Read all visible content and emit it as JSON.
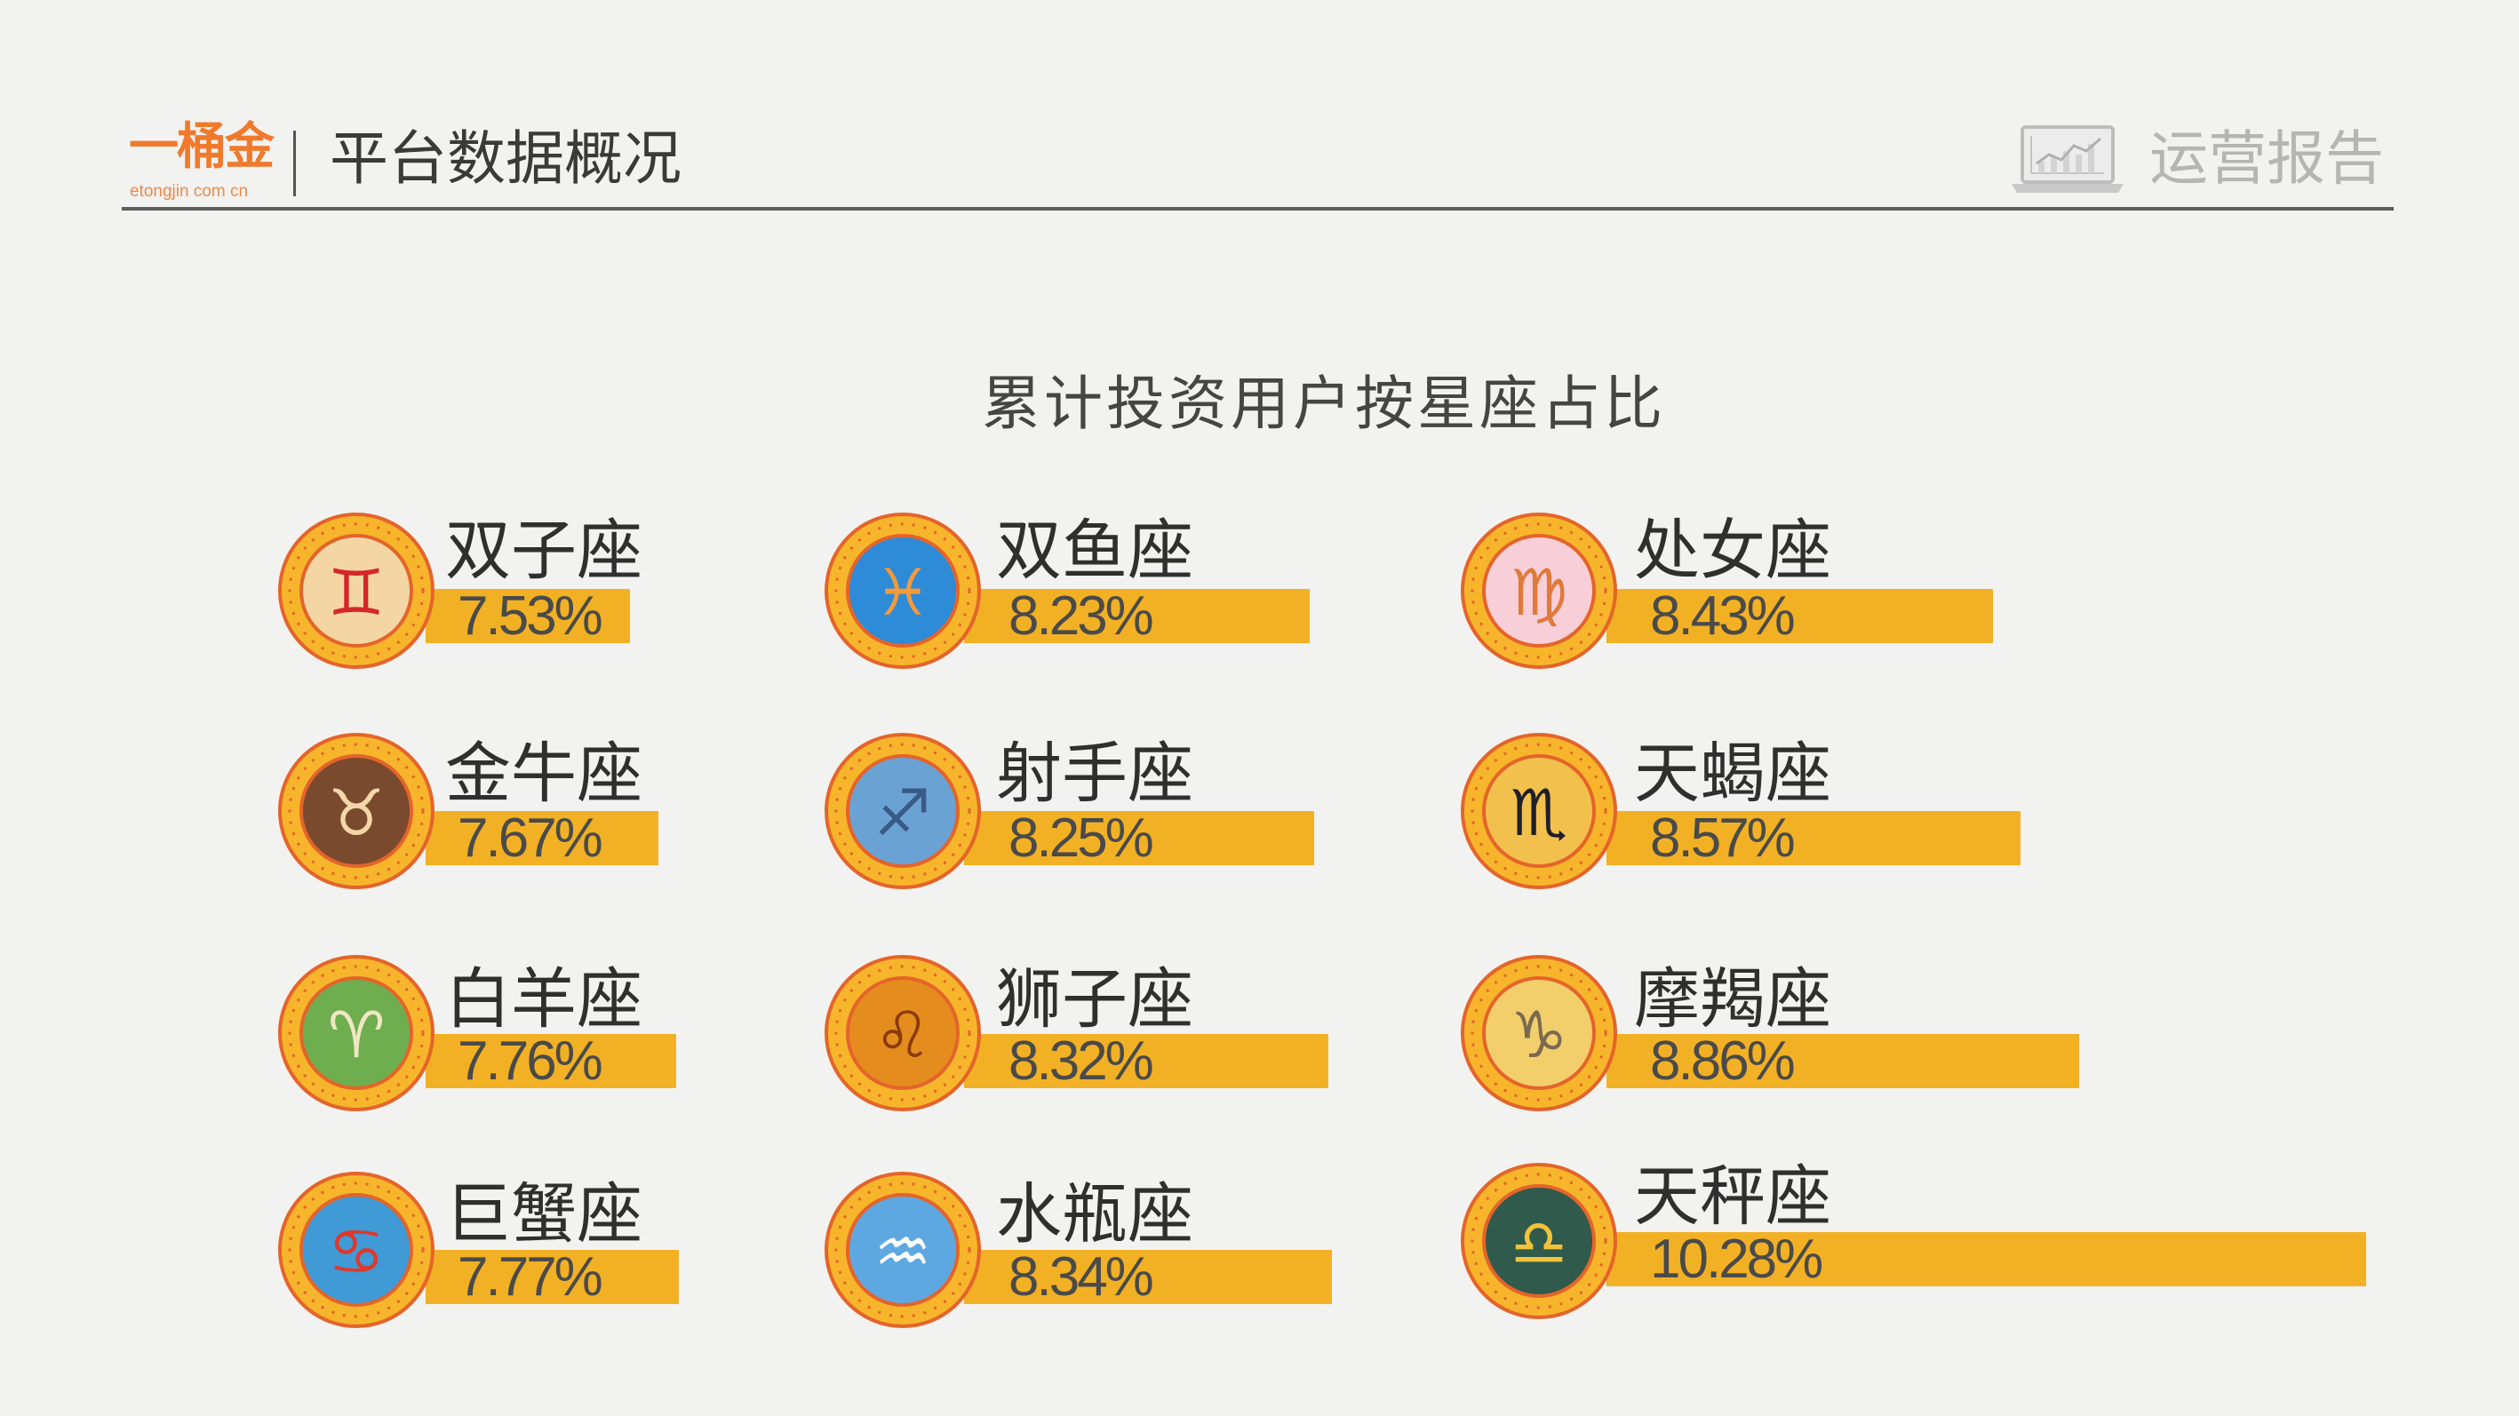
{
  "header": {
    "logo_text": "一桶金",
    "logo_subtext": "etongjin com cn",
    "section_title": "平台数据概况",
    "report_icon": "laptop-chart-icon",
    "report_label": "运营报告"
  },
  "colors": {
    "background": "#f2f2f0",
    "bar": "#f2b124",
    "logo": "#f07a2c",
    "rule": "#5c5c5c",
    "icon_ring": "#f7b52c",
    "icon_edge": "#e4642a"
  },
  "chart_data": {
    "type": "bar",
    "orientation": "horizontal",
    "title": "累计投资用户按星座占比",
    "categories": [
      "双子座",
      "金牛座",
      "白羊座",
      "巨蟹座",
      "双鱼座",
      "射手座",
      "狮子座",
      "水瓶座",
      "处女座",
      "天蝎座",
      "摩羯座",
      "天秤座"
    ],
    "values": [
      7.53,
      7.67,
      7.76,
      7.77,
      8.23,
      8.25,
      8.32,
      8.34,
      8.43,
      8.57,
      8.86,
      10.28
    ],
    "data_labels": [
      "7.53%",
      "7.67%",
      "7.76%",
      "7.77%",
      "8.23%",
      "8.25%",
      "8.32%",
      "8.34%",
      "8.43%",
      "8.57%",
      "8.86%",
      "10.28%"
    ],
    "icons": [
      "gemini-icon",
      "taurus-icon",
      "aries-icon",
      "cancer-icon",
      "pisces-icon",
      "sagittarius-icon",
      "leo-icon",
      "aquarius-icon",
      "virgo-icon",
      "scorpio-icon",
      "capricorn-icon",
      "libra-icon"
    ],
    "icon_colors": [
      {
        "fill": "#f3d6a4",
        "glyph": "#d4262b"
      },
      {
        "fill": "#7a4a2e",
        "glyph": "#f3d7a8"
      },
      {
        "fill": "#6fae4f",
        "glyph": "#f1e6c4"
      },
      {
        "fill": "#3f9ad6",
        "glyph": "#e0382a"
      },
      {
        "fill": "#2e8bd8",
        "glyph": "#f39a3a"
      },
      {
        "fill": "#6aa2d4",
        "glyph": "#3a5a86"
      },
      {
        "fill": "#e58c1f",
        "glyph": "#8a3a0a"
      },
      {
        "fill": "#5ea8e2",
        "glyph": "#ffffff"
      },
      {
        "fill": "#f8cfd9",
        "glyph": "#e07a3a"
      },
      {
        "fill": "#f2c04c",
        "glyph": "#1f1f2a"
      },
      {
        "fill": "#f3cf6c",
        "glyph": "#7a6a50"
      },
      {
        "fill": "#2f5a4c",
        "glyph": "#f2c23a"
      }
    ],
    "grid": false,
    "legend": "none"
  }
}
